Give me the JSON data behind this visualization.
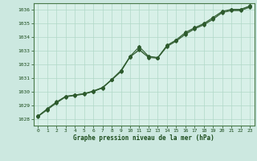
{
  "title": "Graphe pression niveau de la mer (hPa)",
  "background_color": "#cce8e0",
  "plot_bg_color": "#d8f0e8",
  "grid_color": "#b0d8c8",
  "line_color": "#2d5a2d",
  "axis_color": "#4a7a4a",
  "text_color": "#1a4a1a",
  "xlim": [
    -0.5,
    23.5
  ],
  "ylim": [
    1027.5,
    1036.5
  ],
  "yticks": [
    1028,
    1029,
    1030,
    1031,
    1032,
    1033,
    1034,
    1035,
    1036
  ],
  "xticks": [
    0,
    1,
    2,
    3,
    4,
    5,
    6,
    7,
    8,
    9,
    10,
    11,
    12,
    13,
    14,
    15,
    16,
    17,
    18,
    19,
    20,
    21,
    22,
    23
  ],
  "line1_x": [
    0,
    1,
    2,
    3,
    4,
    5,
    6,
    7,
    8,
    9,
    10,
    11,
    12,
    13,
    14,
    15,
    16,
    17,
    18,
    19,
    20,
    21,
    22,
    23
  ],
  "line1_y": [
    1028.2,
    1028.7,
    1029.2,
    1029.65,
    1029.75,
    1029.85,
    1030.05,
    1030.3,
    1030.9,
    1031.55,
    1032.6,
    1033.3,
    1032.6,
    1032.5,
    1033.4,
    1033.8,
    1034.35,
    1034.7,
    1035.0,
    1035.45,
    1035.9,
    1036.05,
    1036.05,
    1036.3
  ],
  "line2_x": [
    0,
    1,
    2,
    3,
    4,
    5,
    6,
    7,
    8,
    9,
    10,
    11,
    12,
    13,
    14,
    15,
    16,
    17,
    18,
    19,
    20,
    21,
    22,
    23
  ],
  "line2_y": [
    1028.2,
    1028.75,
    1029.25,
    1029.65,
    1029.75,
    1029.85,
    1030.0,
    1030.3,
    1030.85,
    1031.5,
    1032.55,
    1033.1,
    1032.55,
    1032.5,
    1033.35,
    1033.75,
    1034.25,
    1034.65,
    1034.95,
    1035.35,
    1035.85,
    1036.0,
    1036.0,
    1036.25
  ],
  "line3_x": [
    0,
    1,
    2,
    3,
    4,
    5,
    6,
    7,
    8,
    9,
    10,
    11,
    12,
    13,
    14,
    15,
    16,
    17,
    18,
    19,
    20,
    21,
    22,
    23
  ],
  "line3_y": [
    1028.15,
    1028.65,
    1029.15,
    1029.6,
    1029.7,
    1029.8,
    1030.0,
    1030.25,
    1030.85,
    1031.45,
    1032.55,
    1033.05,
    1032.5,
    1032.45,
    1033.3,
    1033.7,
    1034.2,
    1034.6,
    1034.9,
    1035.3,
    1035.8,
    1035.95,
    1035.95,
    1036.2
  ]
}
